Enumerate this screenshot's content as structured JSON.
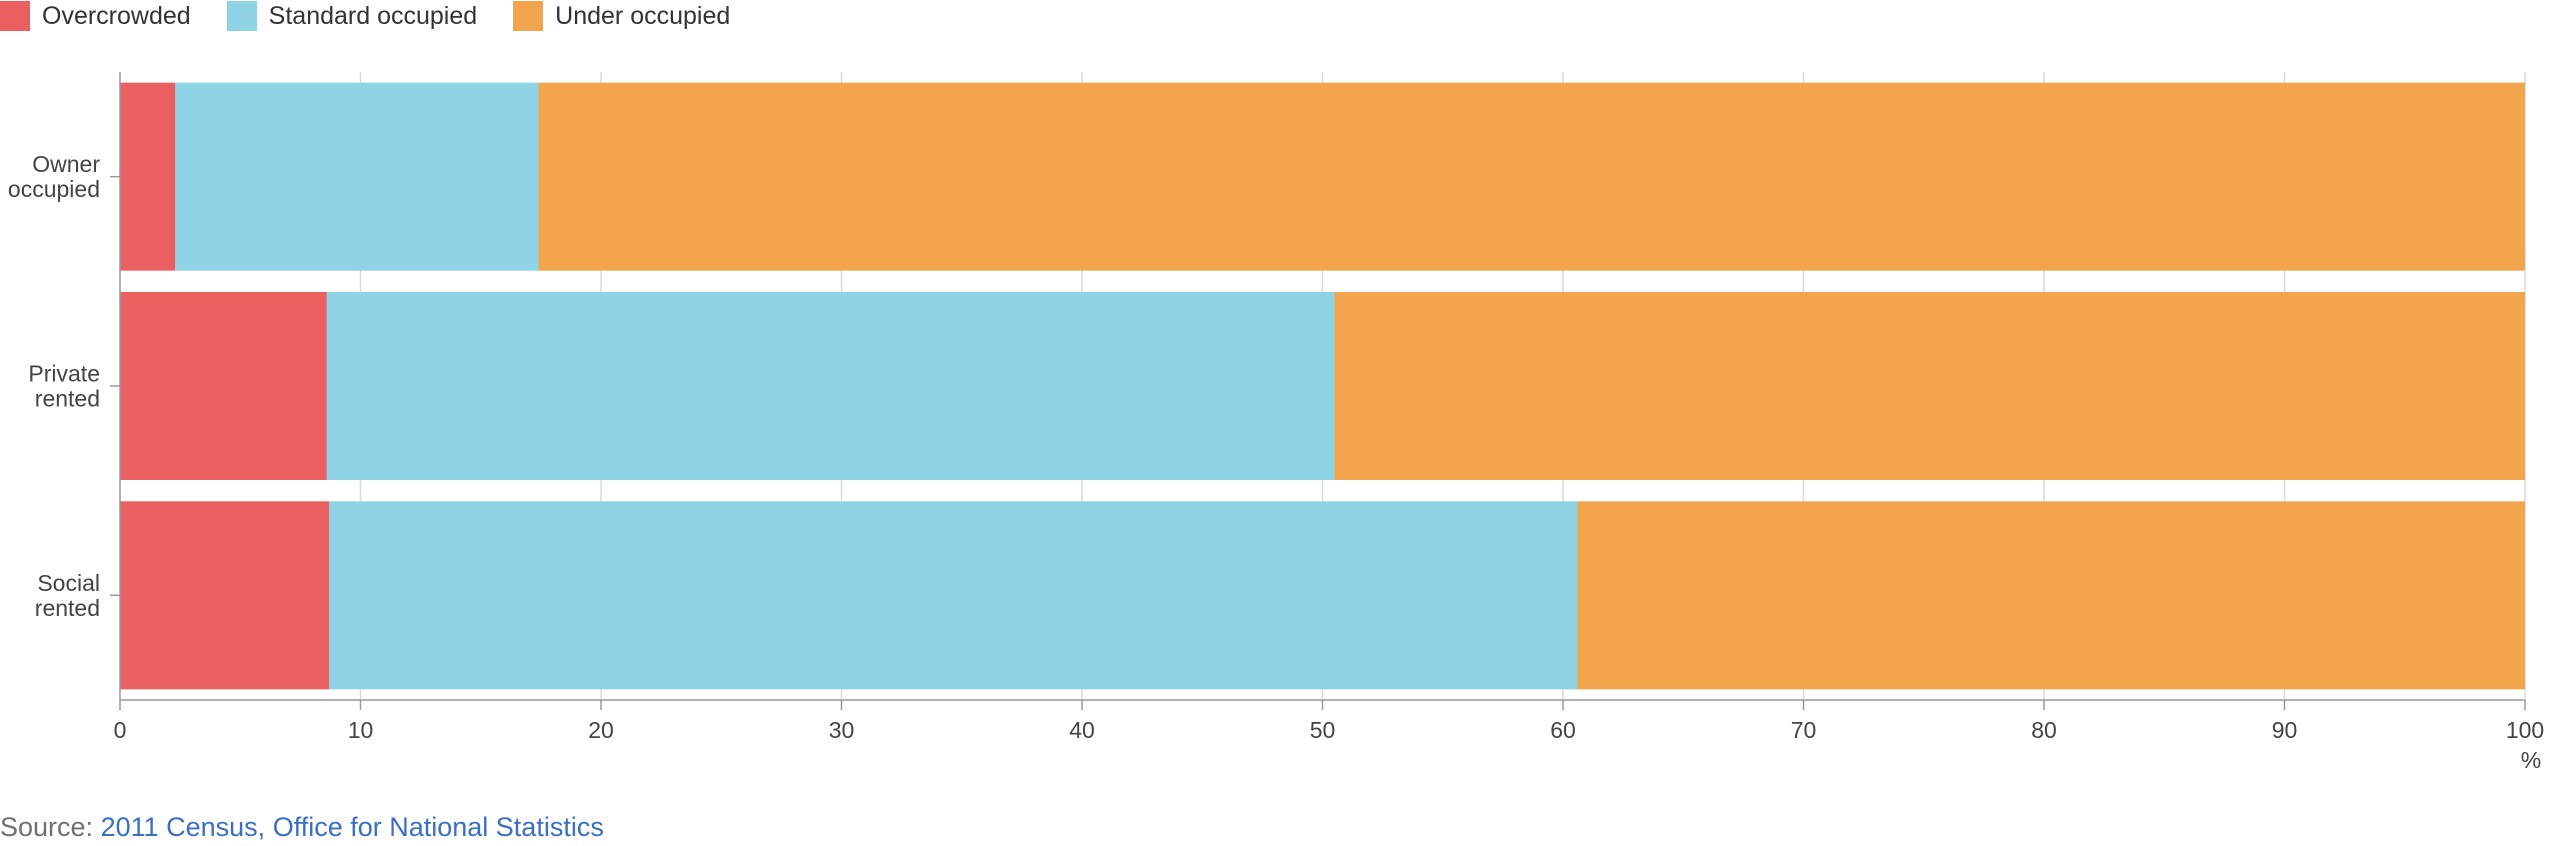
{
  "legend": {
    "items": [
      {
        "label": "Overcrowded",
        "color": "#ea5f5f"
      },
      {
        "label": "Standard occupied",
        "color": "#8ed3e6"
      },
      {
        "label": "Under occupied",
        "color": "#f2a54c"
      }
    ]
  },
  "source": {
    "prefix": "Source:",
    "link_text": "2011 Census, Office for National Statistics"
  },
  "chart_data": {
    "type": "bar",
    "orientation": "horizontal",
    "stacked": true,
    "categories": [
      [
        "Owner",
        "occupied"
      ],
      [
        "Private",
        "rented"
      ],
      [
        "Social",
        "rented"
      ]
    ],
    "series": [
      {
        "name": "Overcrowded",
        "color": "#ea5f5f",
        "values": [
          2.3,
          8.6,
          8.7
        ]
      },
      {
        "name": "Standard occupied",
        "color": "#8ed3e6",
        "values": [
          15.1,
          41.9,
          51.9
        ]
      },
      {
        "name": "Under occupied",
        "color": "#f2a54c",
        "values": [
          82.6,
          49.5,
          39.4
        ]
      }
    ],
    "xlim": [
      0,
      100
    ],
    "xticks": [
      0,
      10,
      20,
      30,
      40,
      50,
      60,
      70,
      80,
      90,
      100
    ],
    "xunit": "%",
    "grid": true
  }
}
